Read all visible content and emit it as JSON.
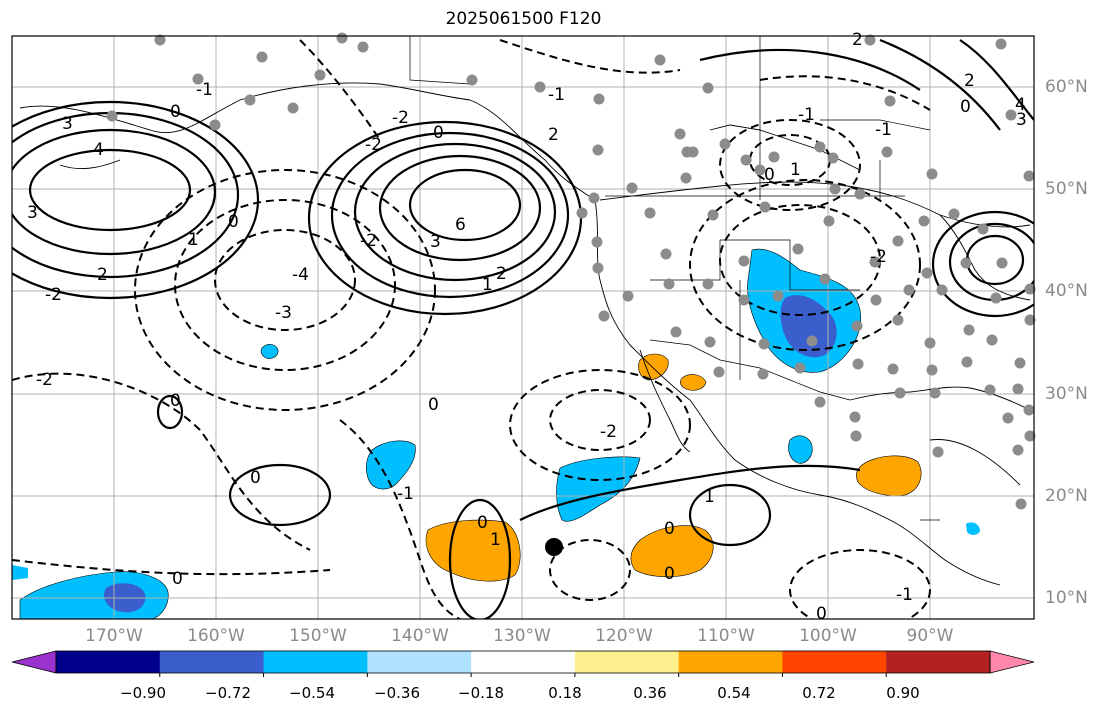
{
  "title": "2025061500 F120",
  "lat_labels": [
    "60°N",
    "50°N",
    "40°N",
    "30°N",
    "20°N",
    "10°N"
  ],
  "lon_labels": [
    "170°W",
    "160°W",
    "150°W",
    "140°W",
    "130°W",
    "120°W",
    "110°W",
    "100°W",
    "90°W"
  ],
  "colorbar": {
    "ticks": [
      "−0.90",
      "−0.72",
      "−0.54",
      "−0.36",
      "−0.18",
      "0.18",
      "0.36",
      "0.54",
      "0.72",
      "0.90"
    ],
    "colors": [
      "#9a32cd",
      "#00008b",
      "#3a5fcd",
      "#00bfff",
      "#b0e2ff",
      "#ffffff",
      "#fff08f",
      "#ffa500",
      "#ff4500",
      "#b22222",
      "#ff88aa"
    ]
  },
  "contour_labels": [
    "0",
    "1",
    "2",
    "3",
    "4",
    "6",
    "-1",
    "-2",
    "-3",
    "-4"
  ],
  "colors": {
    "grid": "#b0b0b0",
    "axis_label": "#8a8a8a",
    "station": "#8c8c8c"
  }
}
